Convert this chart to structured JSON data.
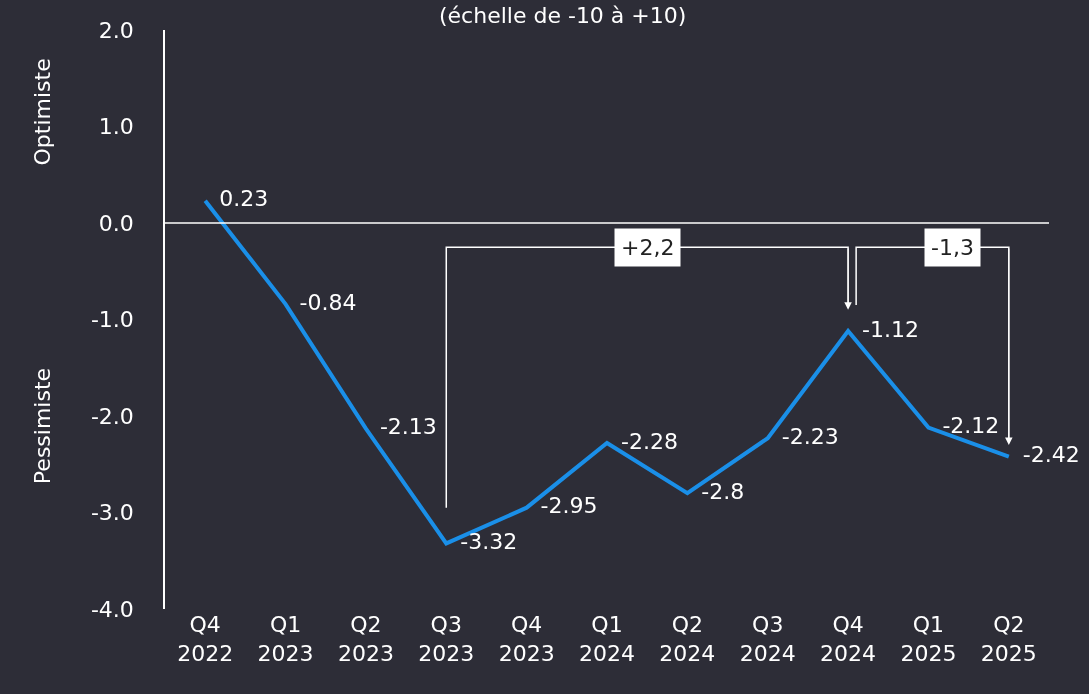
{
  "chart_data": {
    "type": "line",
    "subtitle": "(échelle de -10 à +10)",
    "categories": [
      "Q4\n2022",
      "Q1\n2023",
      "Q2\n2023",
      "Q3\n2023",
      "Q4\n2023",
      "Q1\n2024",
      "Q2\n2024",
      "Q3\n2024",
      "Q4\n2024",
      "Q1\n2025",
      "Q2\n2025"
    ],
    "series": [
      {
        "color": "#1a8fe8",
        "values": [
          0.23,
          -0.84,
          -2.13,
          -3.32,
          -2.95,
          -2.28,
          -2.8,
          -2.23,
          -1.12,
          -2.12,
          -2.42
        ]
      }
    ],
    "ylim": [
      -4,
      2
    ],
    "yticks": [
      {
        "value": -4,
        "label": "-4.0"
      },
      {
        "value": -3,
        "label": "-3.0"
      },
      {
        "value": -2,
        "label": "-2.0"
      },
      {
        "value": -1,
        "label": "-1.0"
      },
      {
        "value": 0,
        "label": "0.0"
      },
      {
        "value": 1,
        "label": "1.0"
      },
      {
        "value": 2,
        "label": "2.0"
      }
    ],
    "ref_lines": [
      {
        "axis": "y",
        "value": 0,
        "color": "#ffffff"
      }
    ],
    "annotations": [
      "Optimiste",
      "Pessimiste",
      "+2,2",
      "-1,3"
    ],
    "data_labels": true,
    "grid": false,
    "marker": "none",
    "line_style": "solid"
  }
}
